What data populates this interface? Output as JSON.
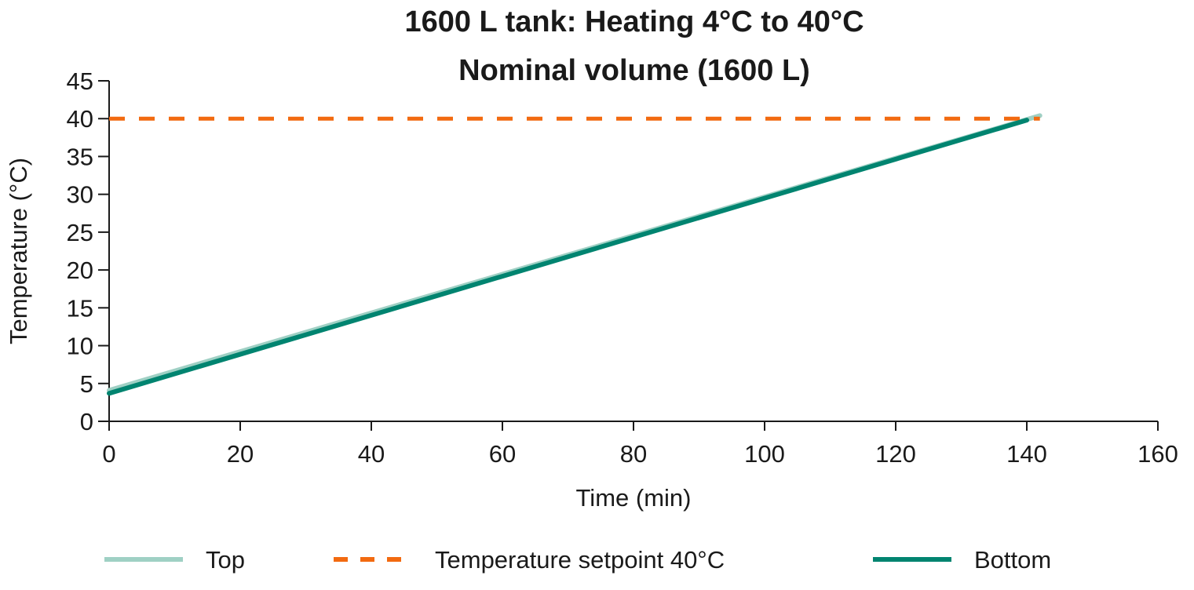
{
  "chart_data": {
    "type": "line",
    "title": [
      "1600 L tank: Heating 4°C to 40°C",
      "Nominal volume (1600 L)"
    ],
    "xlabel": "Time (min)",
    "ylabel": "Temperature (°C)",
    "xlim": [
      0,
      160
    ],
    "ylim": [
      0,
      45
    ],
    "xticks": [
      0,
      20,
      40,
      60,
      80,
      100,
      120,
      140,
      160
    ],
    "yticks": [
      0,
      5,
      10,
      15,
      20,
      25,
      30,
      35,
      40,
      45
    ],
    "grid": false,
    "legend_position": "bottom",
    "series": [
      {
        "name": "Top",
        "color": "#9fd0c4",
        "style": "solid",
        "x": [
          0,
          142
        ],
        "y": [
          4.1,
          40.4
        ]
      },
      {
        "name": "Temperature setpoint 40°C",
        "color": "#f26a10",
        "style": "dashed",
        "x": [
          0,
          142
        ],
        "y": [
          40,
          40
        ]
      },
      {
        "name": "Bottom",
        "color": "#008470",
        "style": "solid",
        "x": [
          0,
          140
        ],
        "y": [
          3.7,
          39.8
        ]
      }
    ]
  }
}
